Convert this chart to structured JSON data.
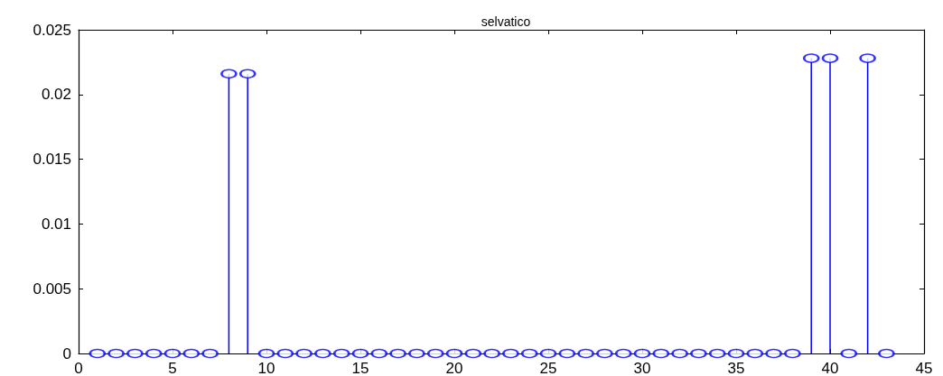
{
  "chart_data": {
    "type": "lollipop",
    "title": "selvatico",
    "x": [
      1,
      2,
      3,
      4,
      5,
      6,
      7,
      8,
      9,
      10,
      11,
      12,
      13,
      14,
      15,
      16,
      17,
      18,
      19,
      20,
      21,
      22,
      23,
      24,
      25,
      26,
      27,
      28,
      29,
      30,
      31,
      32,
      33,
      34,
      35,
      36,
      37,
      38,
      39,
      40,
      41,
      42,
      43
    ],
    "values": [
      0,
      0,
      0,
      0,
      0,
      0,
      0,
      0.0216,
      0.0216,
      0,
      0,
      0,
      0,
      0,
      0,
      0,
      0,
      0,
      0,
      0,
      0,
      0,
      0,
      0,
      0,
      0,
      0,
      0,
      0,
      0,
      0,
      0,
      0,
      0,
      0,
      0,
      0,
      0,
      0.0228,
      0.0228,
      0,
      0.0228,
      0
    ],
    "color": "#0000ff",
    "marker": "circle",
    "xlim": [
      0,
      45
    ],
    "xticks": [
      0,
      5,
      10,
      15,
      20,
      25,
      30,
      35,
      40,
      45
    ],
    "ylim": [
      0,
      0.025
    ],
    "yticks": [
      0,
      0.005,
      0.01,
      0.015,
      0.02,
      0.025
    ],
    "grid": false
  }
}
